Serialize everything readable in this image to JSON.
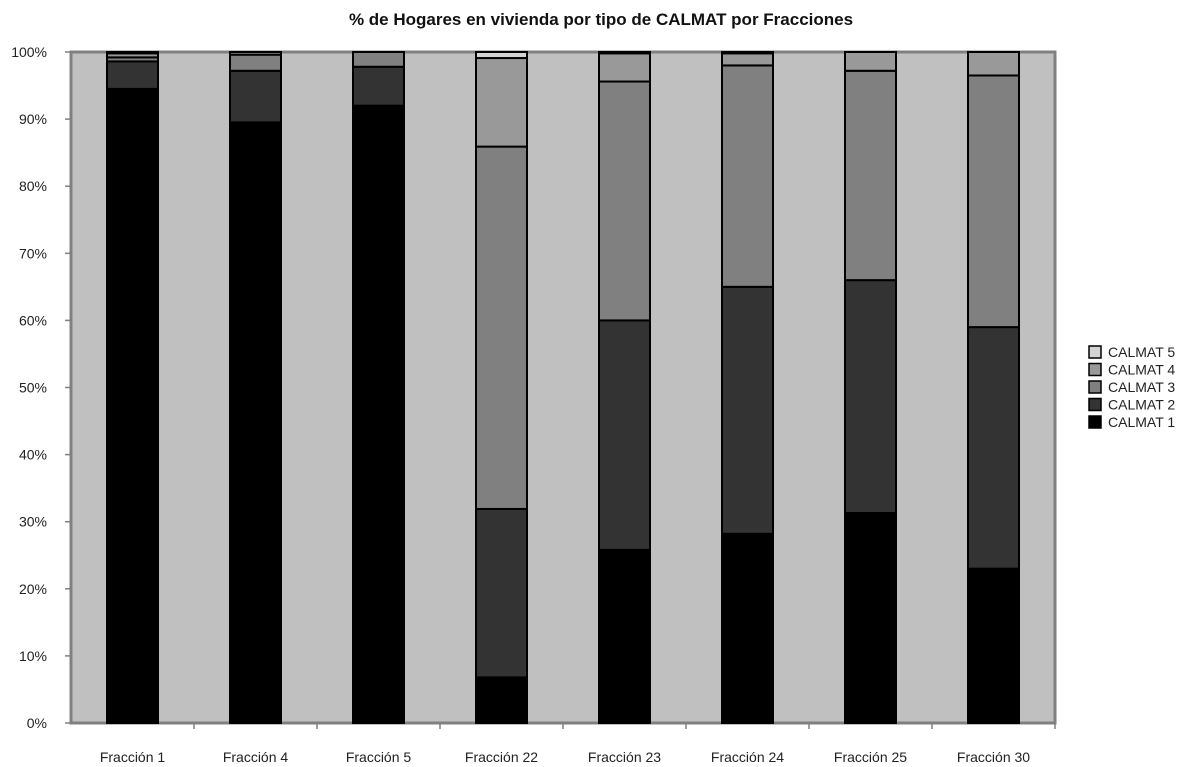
{
  "chart_data": {
    "type": "bar",
    "stacked": true,
    "normalized": true,
    "title": "% de Hogares en vivienda por tipo de CALMAT por Fracciones",
    "xlabel": "",
    "ylabel": "",
    "ylim": [
      0,
      100
    ],
    "y_ticks": [
      "0%",
      "10%",
      "20%",
      "30%",
      "40%",
      "50%",
      "60%",
      "70%",
      "80%",
      "90%",
      "100%"
    ],
    "categories": [
      "Fracción 1",
      "Fracción 4",
      "Fracción 5",
      "Fracción 22",
      "Fracción 23",
      "Fracción 24",
      "Fracción 25",
      "Fracción 30"
    ],
    "series": [
      {
        "name": "CALMAT 1",
        "color": "#000000",
        "values": [
          94.5,
          89.5,
          92.0,
          6.8,
          25.8,
          28.2,
          31.3,
          23.0
        ]
      },
      {
        "name": "CALMAT 2",
        "color": "#333333",
        "values": [
          4.1,
          7.7,
          5.8,
          25.1,
          34.2,
          36.8,
          34.7,
          36.0
        ]
      },
      {
        "name": "CALMAT 3",
        "color": "#808080",
        "values": [
          0.6,
          2.4,
          2.2,
          54.0,
          35.6,
          33.0,
          31.2,
          37.5
        ]
      },
      {
        "name": "CALMAT 4",
        "color": "#999999",
        "values": [
          0.6,
          0.4,
          0.0,
          13.2,
          4.2,
          1.8,
          2.8,
          3.5
        ]
      },
      {
        "name": "CALMAT 5",
        "color": "#d4d4d4",
        "values": [
          0.2,
          0.0,
          0.0,
          0.9,
          0.2,
          0.2,
          0.0,
          0.0
        ]
      }
    ],
    "legend_position": "right",
    "legend_order": [
      "CALMAT 5",
      "CALMAT 4",
      "CALMAT 3",
      "CALMAT 2",
      "CALMAT 1"
    ],
    "plot_background": "#c0c0c0",
    "grid": false
  }
}
